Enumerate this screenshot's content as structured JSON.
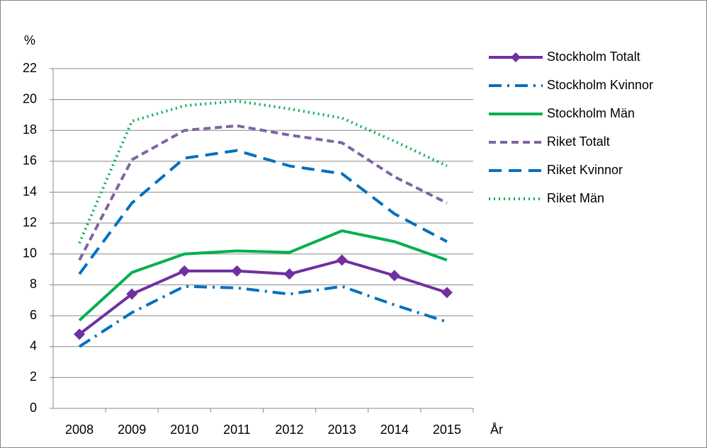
{
  "chart_data": {
    "type": "line",
    "y_label": "%",
    "x_label": "År",
    "categories": [
      "2008",
      "2009",
      "2010",
      "2011",
      "2012",
      "2013",
      "2014",
      "2015"
    ],
    "ylim": [
      0,
      22
    ],
    "yticks": [
      0,
      2,
      4,
      6,
      8,
      10,
      12,
      14,
      16,
      18,
      20,
      22
    ],
    "grid": true,
    "legend": "right",
    "series": [
      {
        "name": "Stockholm Totalt",
        "color": "#7030a0",
        "dash": "solid",
        "marker": "diamond",
        "values": [
          4.8,
          7.4,
          8.9,
          8.9,
          8.7,
          9.6,
          8.6,
          7.5
        ]
      },
      {
        "name": "Stockholm Kvinnor",
        "color": "#0070c0",
        "dash": "dashdot",
        "values": [
          4.0,
          6.2,
          7.9,
          7.8,
          7.4,
          7.9,
          6.7,
          5.6
        ]
      },
      {
        "name": "Stockholm Män",
        "color": "#00b050",
        "dash": "solid",
        "values": [
          5.7,
          8.8,
          10.0,
          10.2,
          10.1,
          11.5,
          10.8,
          9.6
        ]
      },
      {
        "name": "Riket Totalt",
        "color": "#8064a2",
        "dash": "dashed",
        "values": [
          9.6,
          16.1,
          18.0,
          18.3,
          17.7,
          17.2,
          15.0,
          13.3
        ]
      },
      {
        "name": "Riket Kvinnor",
        "color": "#0070c0",
        "dash": "longdash",
        "values": [
          8.7,
          13.3,
          16.2,
          16.7,
          15.7,
          15.2,
          12.6,
          10.8
        ]
      },
      {
        "name": "Riket Män",
        "color": "#00b050",
        "dash": "dotted",
        "values": [
          10.7,
          18.6,
          19.6,
          19.9,
          19.4,
          18.8,
          17.3,
          15.7
        ]
      }
    ]
  }
}
